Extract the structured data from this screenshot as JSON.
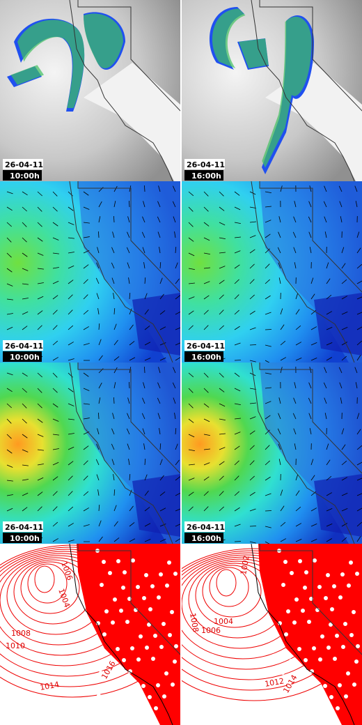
{
  "panels": [
    {
      "date": "26-04-11",
      "time": "10:00h"
    },
    {
      "date": "26-04-11",
      "time": "16:00h"
    },
    {
      "date": "26-04-11",
      "time": "10:00h"
    },
    {
      "date": "26-04-11",
      "time": "16:00h"
    },
    {
      "date": "26-04-11",
      "time": "10:00h"
    },
    {
      "date": "26-04-11",
      "time": "16:00h"
    }
  ],
  "pressure_panels": [
    {
      "labels": [
        "1006",
        "1004",
        "1008",
        "1010",
        "1014",
        "1016"
      ]
    },
    {
      "labels": [
        "1002",
        "1004",
        "1006",
        "1008",
        "1012",
        "1014"
      ]
    }
  ]
}
